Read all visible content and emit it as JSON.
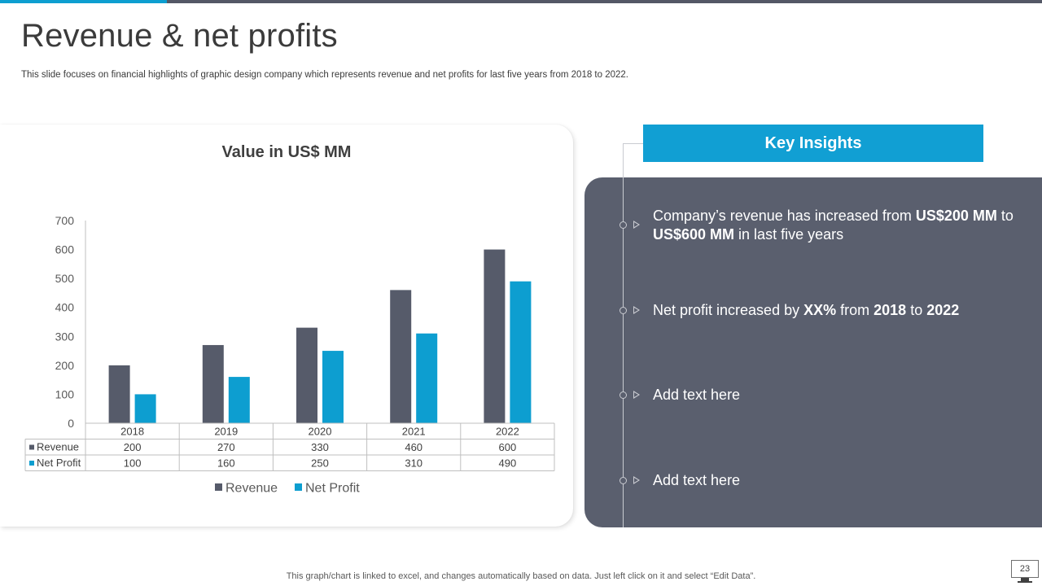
{
  "slide": {
    "title": "Revenue & net profits",
    "subtitle": "This slide focuses on financial highlights of graphic design company which represents revenue and net profits for last five years from 2018 to 2022.",
    "footer_note": "This graph/chart is linked to excel, and changes automatically based on data. Just left click on it and select “Edit Data”.",
    "page_number": "23"
  },
  "chart_data": {
    "type": "bar",
    "title": "Value in US$ MM",
    "categories": [
      "2018",
      "2019",
      "2020",
      "2021",
      "2022"
    ],
    "series": [
      {
        "name": "Revenue",
        "values": [
          200,
          270,
          330,
          460,
          600
        ],
        "color": "#565b6a"
      },
      {
        "name": "Net Profit",
        "values": [
          100,
          160,
          250,
          310,
          490
        ],
        "color": "#0d9ed0"
      }
    ],
    "ylim": [
      0,
      700
    ],
    "yticks": [
      0,
      100,
      200,
      300,
      400,
      500,
      600,
      700
    ],
    "xlabel": "",
    "ylabel": "",
    "legend_position": "bottom",
    "data_table": true
  },
  "insights": {
    "header": "Key Insights",
    "items": [
      {
        "parts": [
          {
            "text": "Company’s revenue has increased from ",
            "bold": false
          },
          {
            "text": "US$200 MM",
            "bold": true
          },
          {
            "text": " to ",
            "bold": false
          },
          {
            "text": "US$600 MM",
            "bold": true
          },
          {
            "text": " in last five years",
            "bold": false
          }
        ]
      },
      {
        "parts": [
          {
            "text": "Net profit increased by ",
            "bold": false
          },
          {
            "text": "XX%",
            "bold": true
          },
          {
            "text": " from ",
            "bold": false
          },
          {
            "text": "2018",
            "bold": true
          },
          {
            "text": " to ",
            "bold": false
          },
          {
            "text": "2022",
            "bold": true
          }
        ]
      },
      {
        "parts": [
          {
            "text": "Add text here",
            "bold": false
          }
        ]
      },
      {
        "parts": [
          {
            "text": "Add text here",
            "bold": false
          }
        ]
      }
    ]
  }
}
